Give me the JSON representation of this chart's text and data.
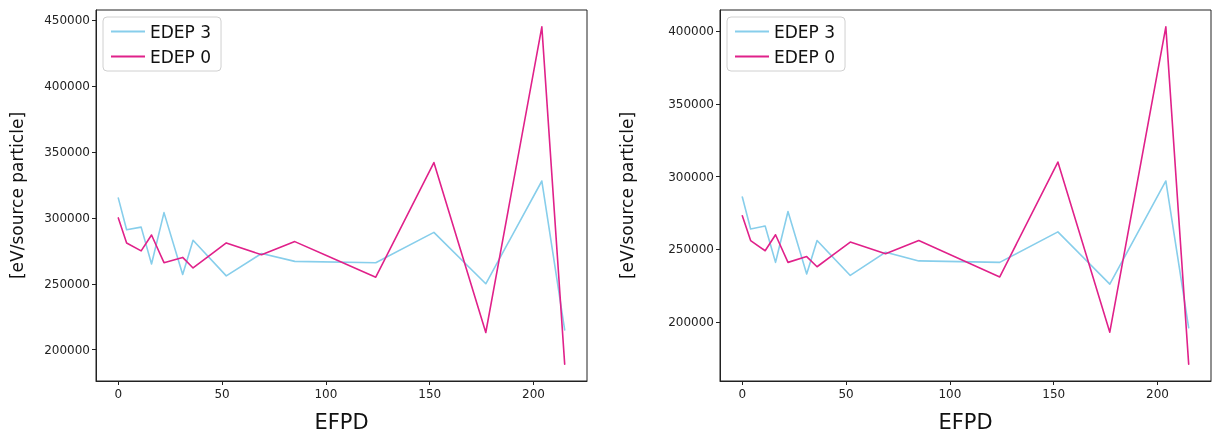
{
  "chart_data": [
    {
      "type": "line",
      "xlabel": "EFPD",
      "ylabel": "[eV/source particle]",
      "x": [
        0,
        4,
        11,
        16,
        22,
        31,
        36,
        52,
        69,
        85,
        124,
        152,
        177,
        204,
        215
      ],
      "series": [
        {
          "name": "EDEP 3",
          "color": "#87ceeb",
          "values": [
            315000,
            291000,
            293000,
            265000,
            304000,
            257000,
            283000,
            256000,
            273000,
            267000,
            266000,
            289000,
            250000,
            328000,
            215000
          ]
        },
        {
          "name": "EDEP 0",
          "color": "#e0218a",
          "values": [
            300000,
            281000,
            275000,
            287000,
            266000,
            270000,
            262000,
            281000,
            272000,
            282000,
            255000,
            342000,
            213000,
            445000,
            189000
          ]
        }
      ],
      "xlim": [
        -10.75,
        225.75
      ],
      "xticks": [
        0,
        50,
        100,
        150,
        200
      ],
      "ylim": [
        176200,
        457800
      ],
      "yticks": [
        200000,
        250000,
        300000,
        350000,
        400000,
        450000
      ],
      "grid": false,
      "legend": "top left",
      "marker": "none",
      "line_style": "solid"
    },
    {
      "type": "line",
      "xlabel": "EFPD",
      "ylabel": "[eV/source particle]",
      "x": [
        0,
        4,
        11,
        16,
        22,
        31,
        36,
        52,
        69,
        85,
        124,
        152,
        177,
        204,
        215
      ],
      "series": [
        {
          "name": "EDEP 3",
          "color": "#87ceeb",
          "values": [
            286000,
            264000,
            266000,
            241000,
            276000,
            233000,
            256000,
            232000,
            248000,
            242000,
            241000,
            262000,
            226000,
            297000,
            196000
          ]
        },
        {
          "name": "EDEP 0",
          "color": "#e0218a",
          "values": [
            273000,
            256000,
            249000,
            260000,
            241000,
            245000,
            238000,
            255000,
            247000,
            256000,
            231000,
            310000,
            193000,
            403000,
            171000
          ]
        }
      ],
      "xlim": [
        -10.75,
        225.75
      ],
      "xticks": [
        0,
        50,
        100,
        150,
        200
      ],
      "ylim": [
        159400,
        414600
      ],
      "yticks": [
        200000,
        250000,
        300000,
        350000,
        400000
      ],
      "grid": false,
      "legend": "top left",
      "marker": "none",
      "line_style": "solid"
    }
  ]
}
